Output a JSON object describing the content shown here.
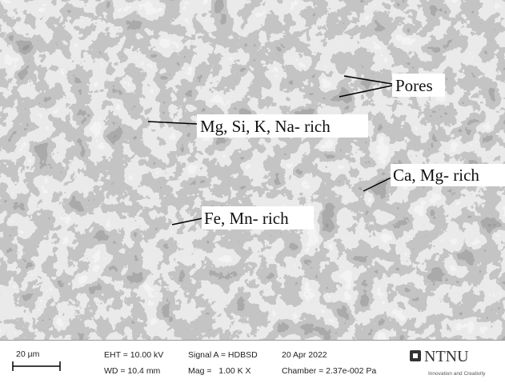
{
  "annotations": [
    {
      "label": "Pores"
    },
    {
      "label": "Mg, Si, K, Na- rich"
    },
    {
      "label": "Ca, Mg- rich"
    },
    {
      "label": "Fe, Mn- rich"
    }
  ],
  "info_bar": {
    "scale": "20 µm",
    "eht": "EHT = 10.00 kV",
    "wd": "WD = 10.4 mm",
    "signal": "Signal A = HDBSD",
    "mag": "Mag =   1.00 K X",
    "date": "20 Apr 2022",
    "chamber": "Chamber = 2.37e-002 Pa",
    "logo": "NTNU",
    "logo_tagline": "Innovation and Creativity"
  }
}
